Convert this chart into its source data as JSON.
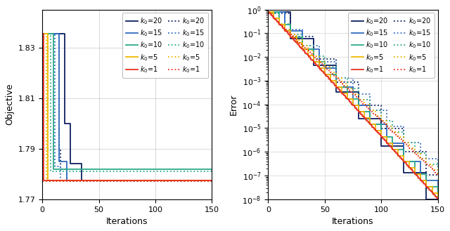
{
  "left_ylabel": "Objective",
  "right_ylabel": "Error",
  "xlabel": "Iterations",
  "colors": {
    "k20": "#0d2060",
    "k15": "#2f6bbf",
    "k10": "#2aaa8a",
    "k5": "#f0b800",
    "k1": "#e83020"
  },
  "left_yticks": [
    1.77,
    1.79,
    1.81,
    1.83
  ],
  "xticks": [
    0,
    50,
    100,
    150
  ],
  "k_vals": [
    20,
    15,
    10,
    5,
    1
  ]
}
